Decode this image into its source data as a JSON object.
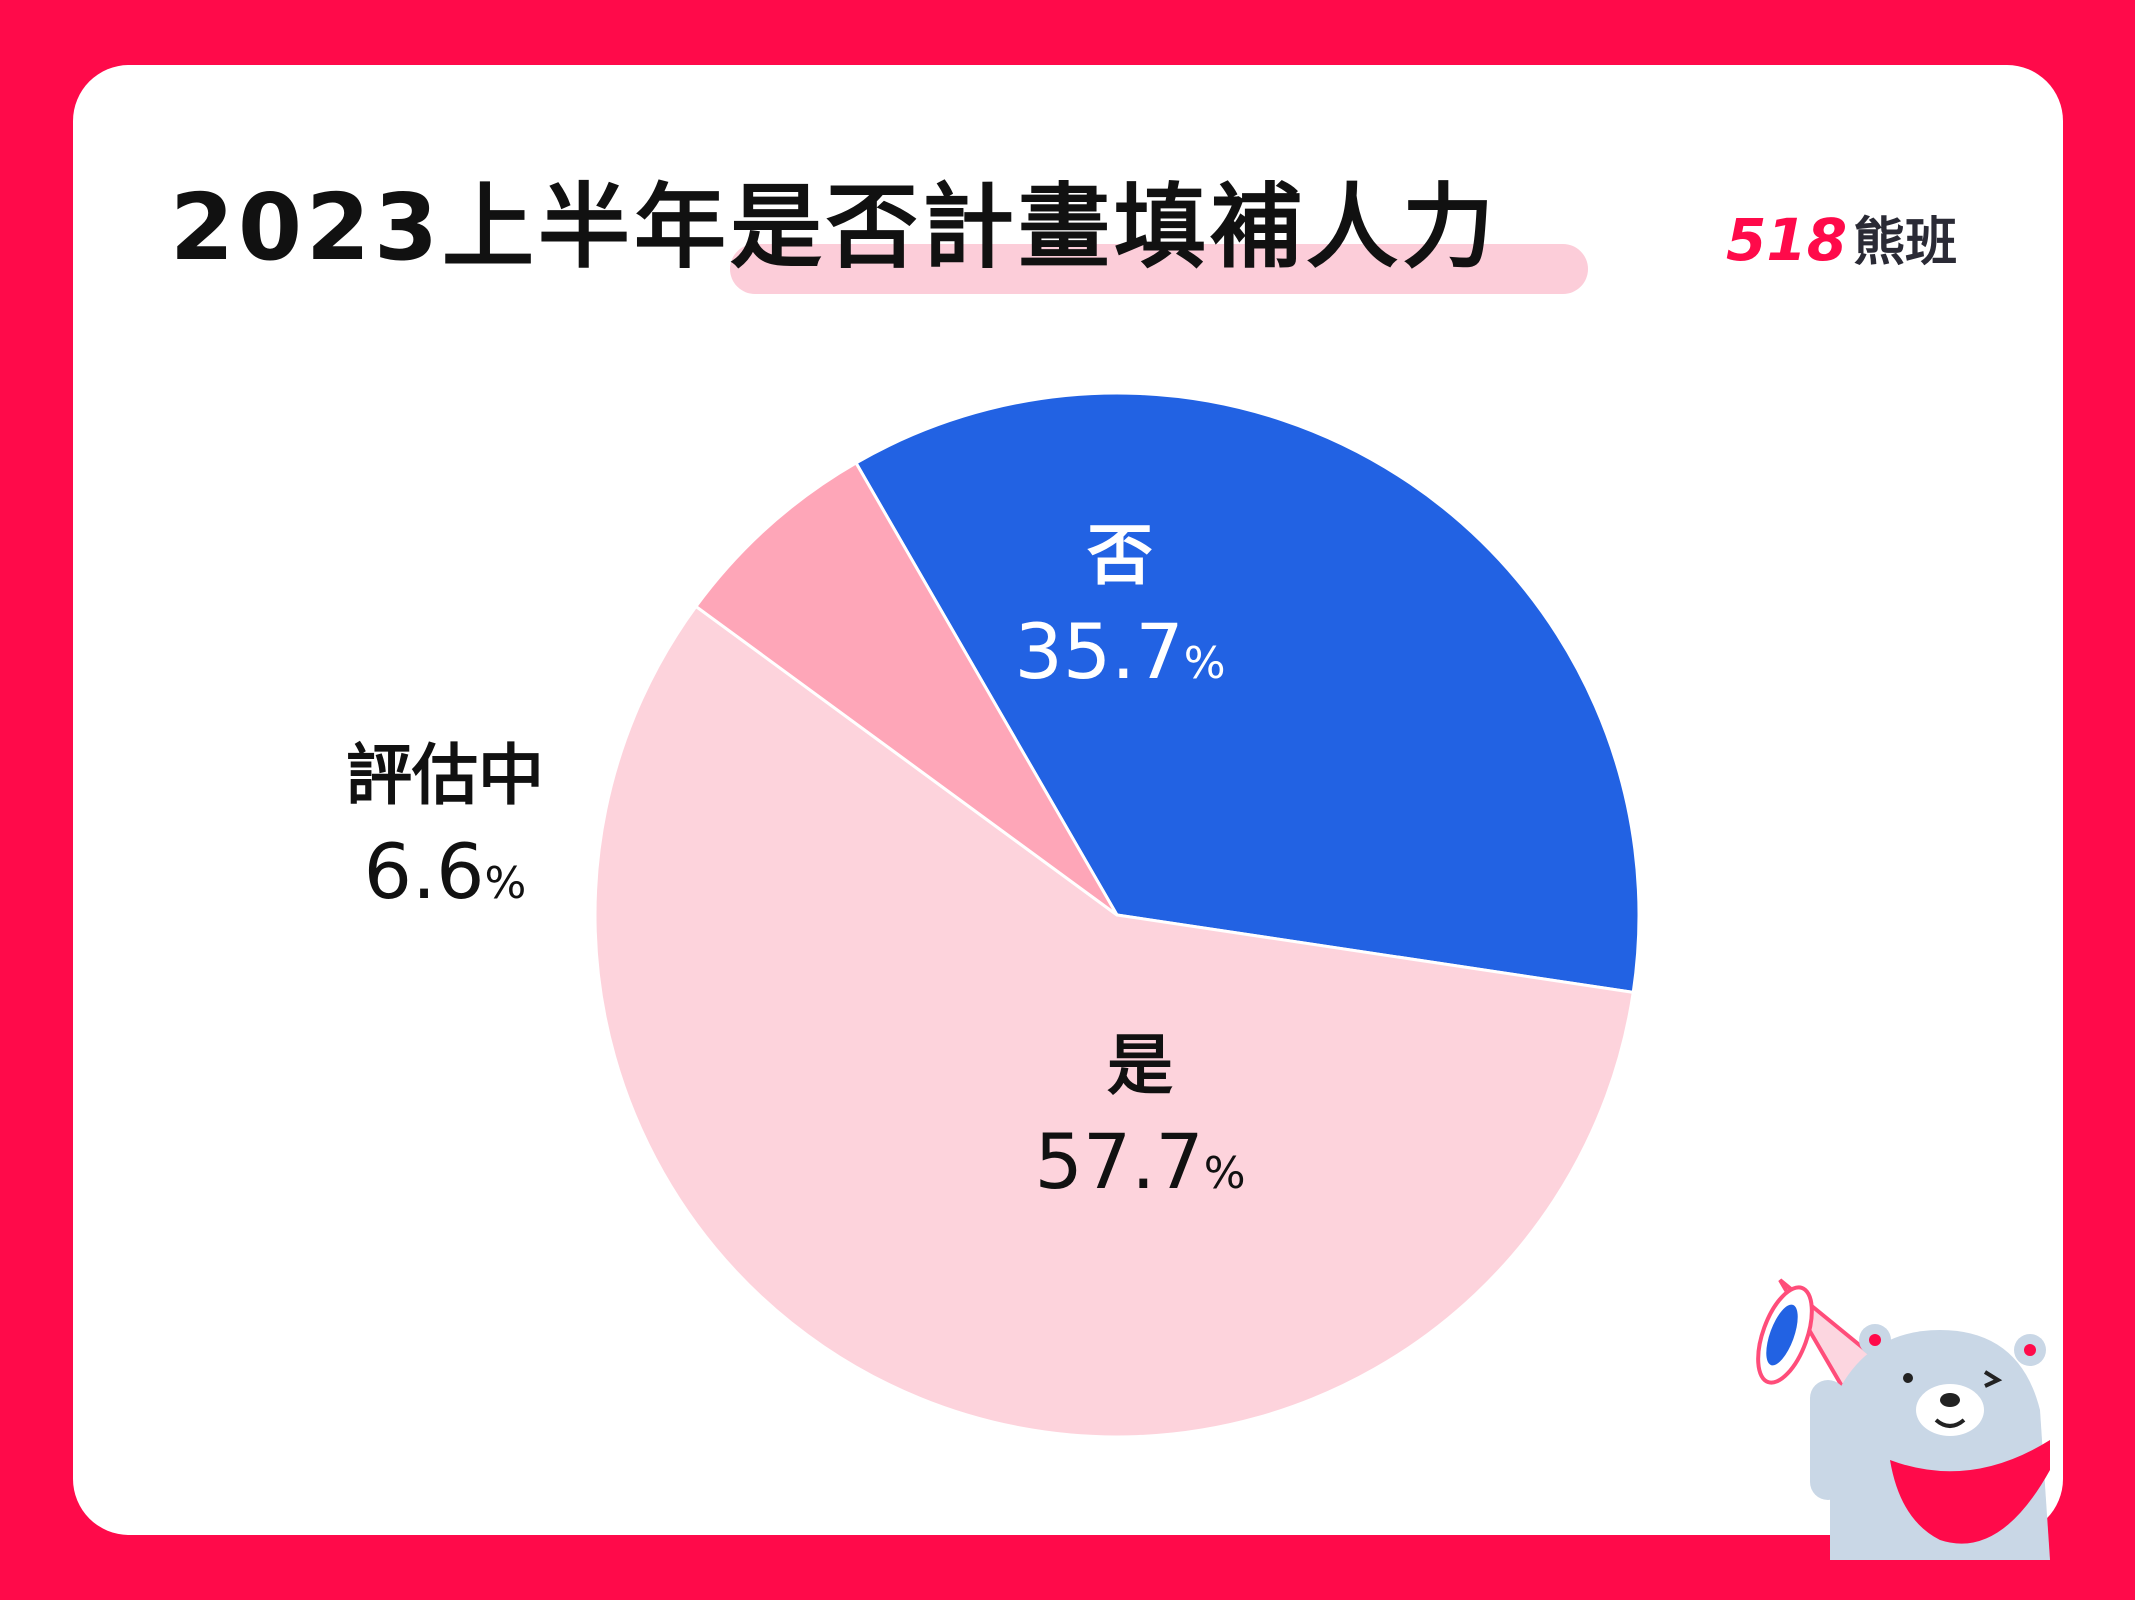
{
  "logo": {
    "number": "518",
    "brand": "熊班"
  },
  "chart_data": {
    "type": "pie",
    "title": "2023上半年是否計畫填補人力",
    "legend": "none",
    "slices": [
      {
        "label": "否",
        "value": 35.7,
        "display": "35.7",
        "unit": "%",
        "color": "#2262e3",
        "text_color": "#ffffff"
      },
      {
        "label": "是",
        "value": 57.7,
        "display": "57.7",
        "unit": "%",
        "color": "#fdd3dc",
        "text_color": "#111111"
      },
      {
        "label": "評估中",
        "value": 6.6,
        "display": "6.6",
        "unit": "%",
        "color": "#fea6b8",
        "text_color": "#111111"
      }
    ]
  }
}
